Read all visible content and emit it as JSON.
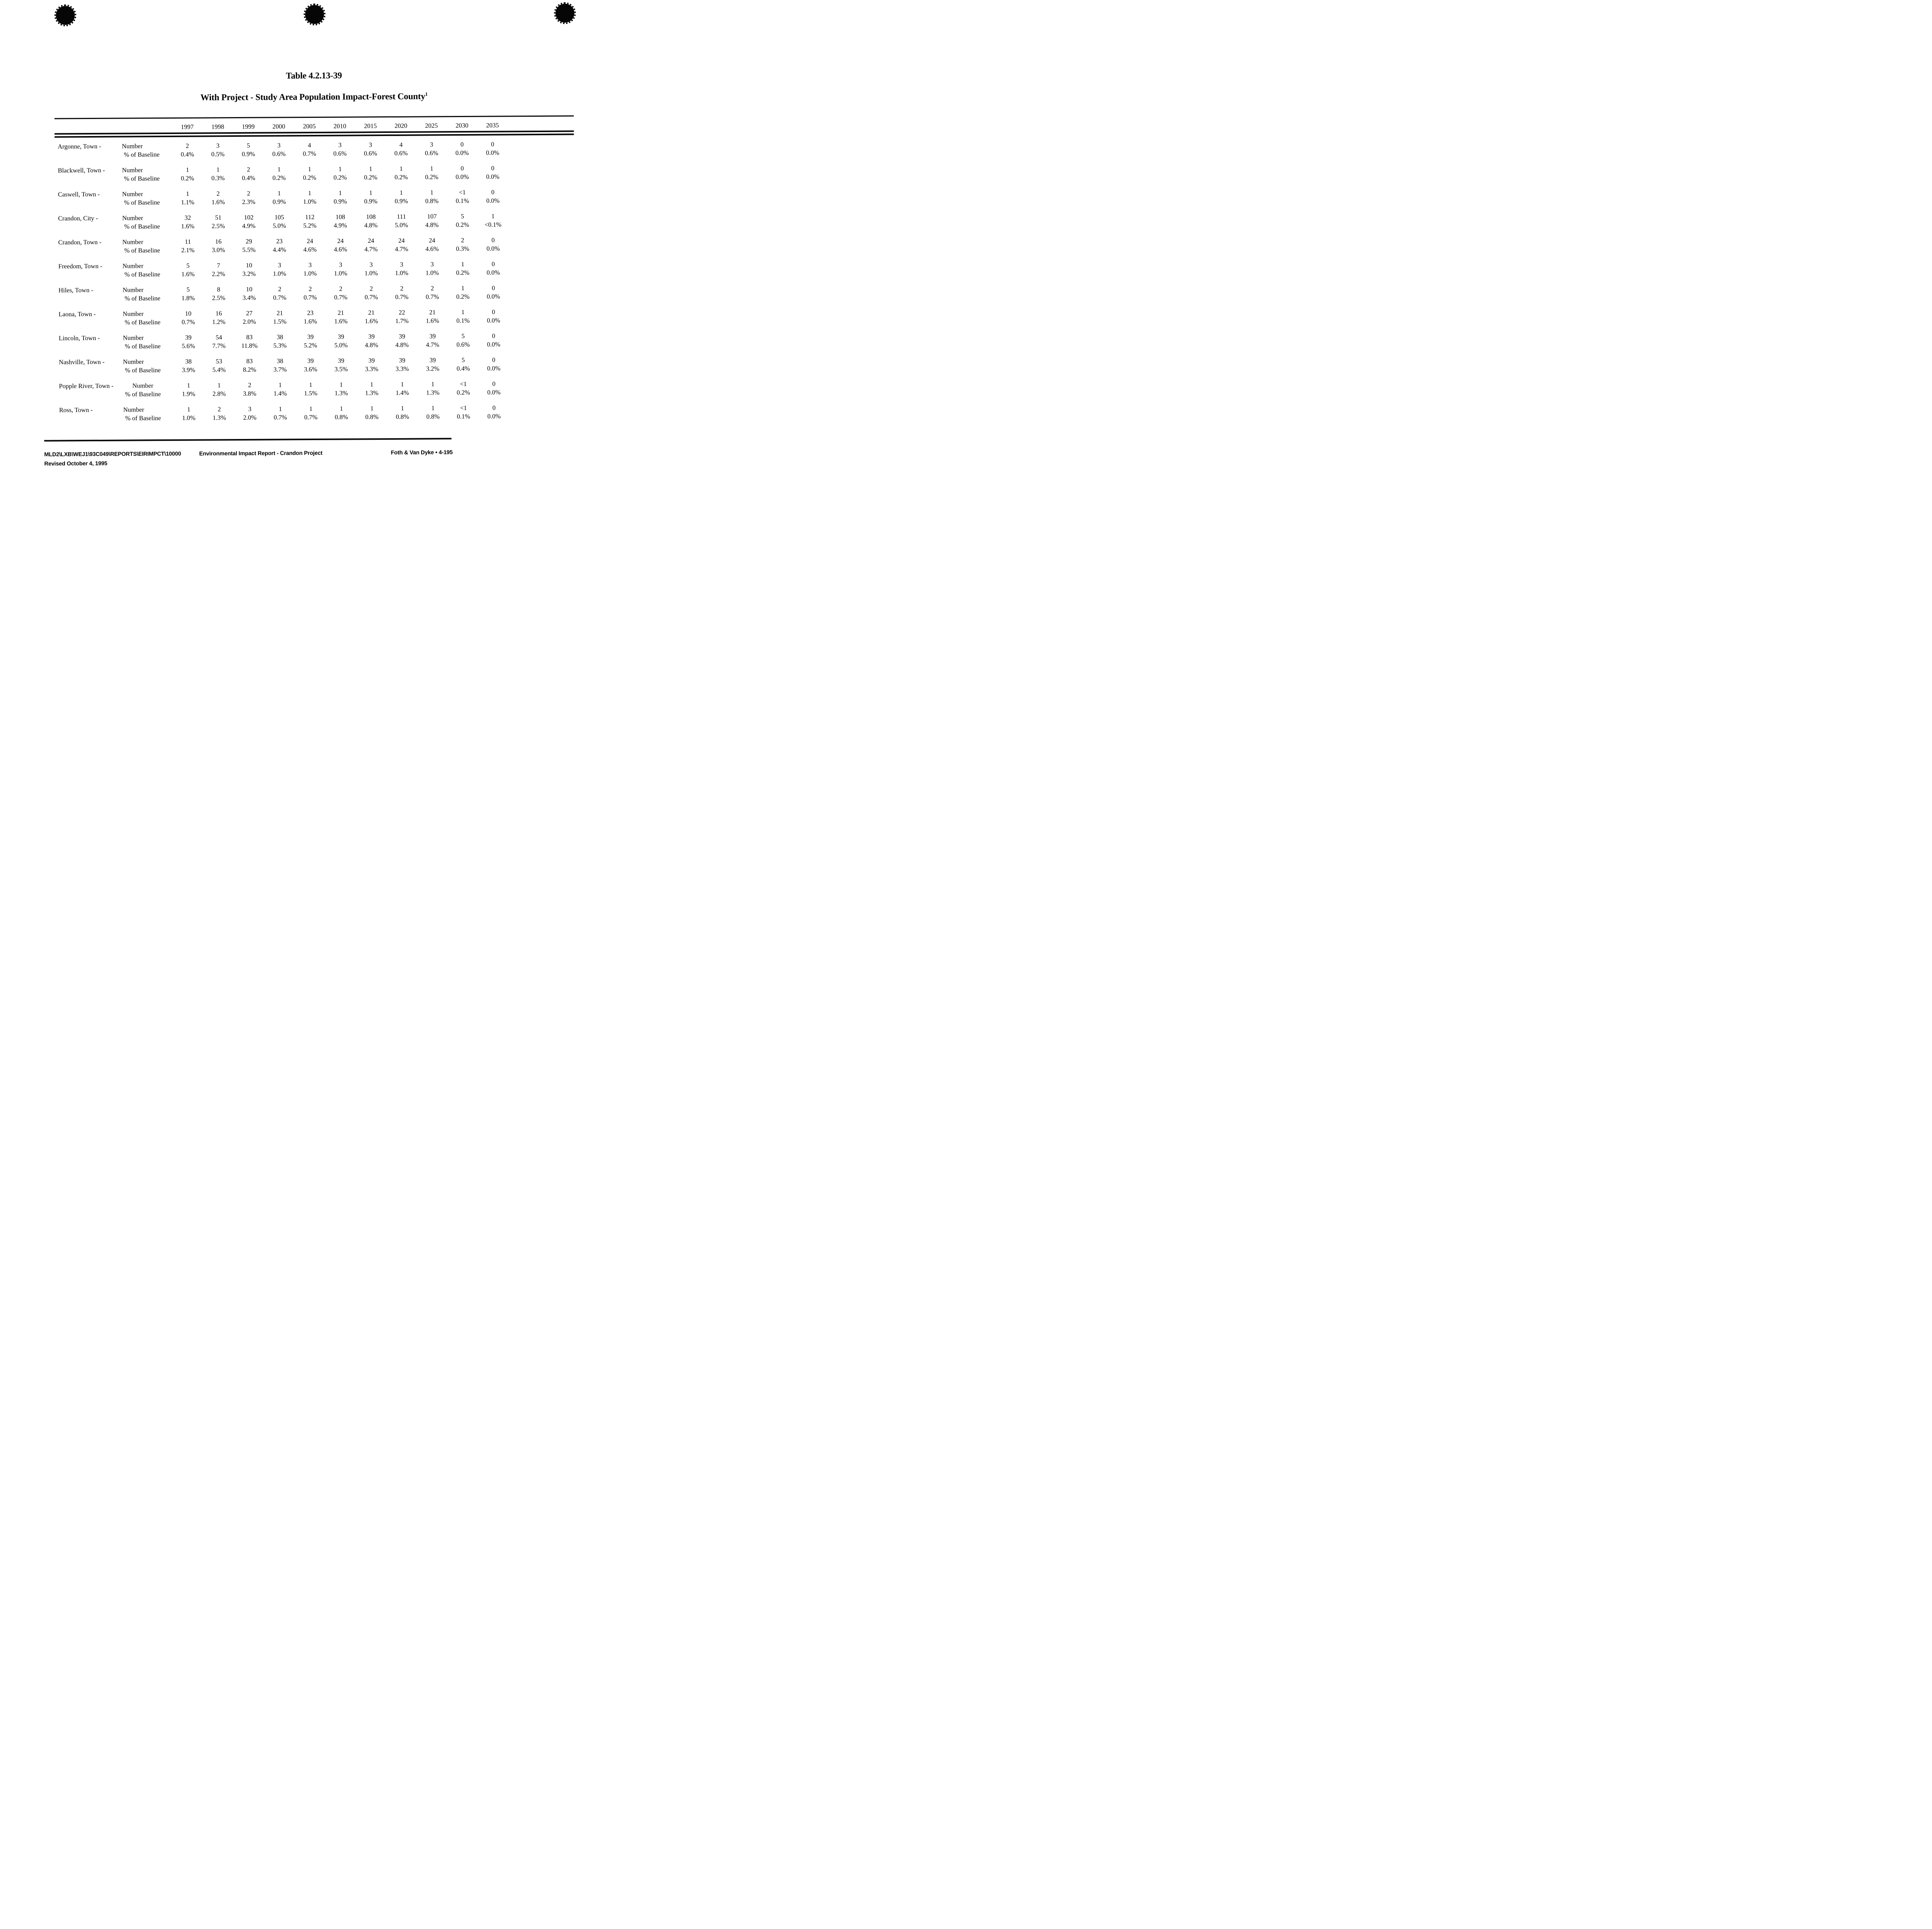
{
  "page": {
    "title": "Table 4.2.13-39",
    "subtitle": "With Project - Study Area Population Impact-Forest County",
    "subtitle_superscript": "1"
  },
  "table": {
    "year_columns": [
      "1997",
      "1998",
      "1999",
      "2000",
      "2005",
      "2010",
      "2015",
      "2020",
      "2025",
      "2030",
      "2035"
    ],
    "number_label": "Number",
    "pct_label": "% of Baseline",
    "rows": [
      {
        "area": "Argonne, Town -",
        "number": [
          "2",
          "3",
          "5",
          "3",
          "4",
          "3",
          "3",
          "4",
          "3",
          "0",
          "0"
        ],
        "pct_of_baseline": [
          "0.4%",
          "0.5%",
          "0.9%",
          "0.6%",
          "0.7%",
          "0.6%",
          "0.6%",
          "0.6%",
          "0.6%",
          "0.0%",
          "0.0%"
        ]
      },
      {
        "area": "Blackwell, Town -",
        "number": [
          "1",
          "1",
          "2",
          "1",
          "1",
          "1",
          "1",
          "1",
          "1",
          "0",
          "0"
        ],
        "pct_of_baseline": [
          "0.2%",
          "0.3%",
          "0.4%",
          "0.2%",
          "0.2%",
          "0.2%",
          "0.2%",
          "0.2%",
          "0.2%",
          "0.0%",
          "0.0%"
        ]
      },
      {
        "area": "Caswell, Town -",
        "number": [
          "1",
          "2",
          "2",
          "1",
          "1",
          "1",
          "1",
          "1",
          "1",
          "<1",
          "0"
        ],
        "pct_of_baseline": [
          "1.1%",
          "1.6%",
          "2.3%",
          "0.9%",
          "1.0%",
          "0.9%",
          "0.9%",
          "0.9%",
          "0.8%",
          "0.1%",
          "0.0%"
        ]
      },
      {
        "area": "Crandon, City -",
        "number": [
          "32",
          "51",
          "102",
          "105",
          "112",
          "108",
          "108",
          "111",
          "107",
          "5",
          "1"
        ],
        "pct_of_baseline": [
          "1.6%",
          "2.5%",
          "4.9%",
          "5.0%",
          "5.2%",
          "4.9%",
          "4.8%",
          "5.0%",
          "4.8%",
          "0.2%",
          "<0.1%"
        ]
      },
      {
        "area": "Crandon, Town -",
        "number": [
          "11",
          "16",
          "29",
          "23",
          "24",
          "24",
          "24",
          "24",
          "24",
          "2",
          "0"
        ],
        "pct_of_baseline": [
          "2.1%",
          "3.0%",
          "5.5%",
          "4.4%",
          "4.6%",
          "4.6%",
          "4.7%",
          "4.7%",
          "4.6%",
          "0.3%",
          "0.0%"
        ]
      },
      {
        "area": "Freedom, Town -",
        "number": [
          "5",
          "7",
          "10",
          "3",
          "3",
          "3",
          "3",
          "3",
          "3",
          "1",
          "0"
        ],
        "pct_of_baseline": [
          "1.6%",
          "2.2%",
          "3.2%",
          "1.0%",
          "1.0%",
          "1.0%",
          "1.0%",
          "1.0%",
          "1.0%",
          "0.2%",
          "0.0%"
        ]
      },
      {
        "area": "Hiles, Town -",
        "number": [
          "5",
          "8",
          "10",
          "2",
          "2",
          "2",
          "2",
          "2",
          "2",
          "1",
          "0"
        ],
        "pct_of_baseline": [
          "1.8%",
          "2.5%",
          "3.4%",
          "0.7%",
          "0.7%",
          "0.7%",
          "0.7%",
          "0.7%",
          "0.7%",
          "0.2%",
          "0.0%"
        ]
      },
      {
        "area": "Laona, Town -",
        "number": [
          "10",
          "16",
          "27",
          "21",
          "23",
          "21",
          "21",
          "22",
          "21",
          "1",
          "0"
        ],
        "pct_of_baseline": [
          "0.7%",
          "1.2%",
          "2.0%",
          "1.5%",
          "1.6%",
          "1.6%",
          "1.6%",
          "1.7%",
          "1.6%",
          "0.1%",
          "0.0%"
        ]
      },
      {
        "area": "Lincoln, Town -",
        "number": [
          "39",
          "54",
          "83",
          "38",
          "39",
          "39",
          "39",
          "39",
          "39",
          "5",
          "0"
        ],
        "pct_of_baseline": [
          "5.6%",
          "7.7%",
          "11.8%",
          "5.3%",
          "5.2%",
          "5.0%",
          "4.8%",
          "4.8%",
          "4.7%",
          "0.6%",
          "0.0%"
        ]
      },
      {
        "area": "Nashville, Town -",
        "number": [
          "38",
          "53",
          "83",
          "38",
          "39",
          "39",
          "39",
          "39",
          "39",
          "5",
          "0"
        ],
        "pct_of_baseline": [
          "3.9%",
          "5.4%",
          "8.2%",
          "3.7%",
          "3.6%",
          "3.5%",
          "3.3%",
          "3.3%",
          "3.2%",
          "0.4%",
          "0.0%"
        ]
      },
      {
        "area": "Popple River, Town -",
        "number": [
          "1",
          "1",
          "2",
          "1",
          "1",
          "1",
          "1",
          "1",
          "1",
          "<1",
          "0"
        ],
        "pct_of_baseline": [
          "1.9%",
          "2.8%",
          "3.8%",
          "1.4%",
          "1.5%",
          "1.3%",
          "1.3%",
          "1.4%",
          "1.3%",
          "0.2%",
          "0.0%"
        ]
      },
      {
        "area": "Ross, Town -",
        "number": [
          "1",
          "2",
          "3",
          "1",
          "1",
          "1",
          "1",
          "1",
          "1",
          "<1",
          "0"
        ],
        "pct_of_baseline": [
          "1.0%",
          "1.3%",
          "2.0%",
          "0.7%",
          "0.7%",
          "0.8%",
          "0.8%",
          "0.8%",
          "0.8%",
          "0.1%",
          "0.0%"
        ]
      }
    ]
  },
  "footer": {
    "file_path": "MLD2\\LXB\\WEJ1\\93C049\\REPORTS\\EIRIMPCT\\10000",
    "report_title": "Environmental Impact Report - Crandon Project",
    "firm_page": "Foth & Van Dyke • 4-195",
    "revision": "Revised October 4, 1995"
  }
}
